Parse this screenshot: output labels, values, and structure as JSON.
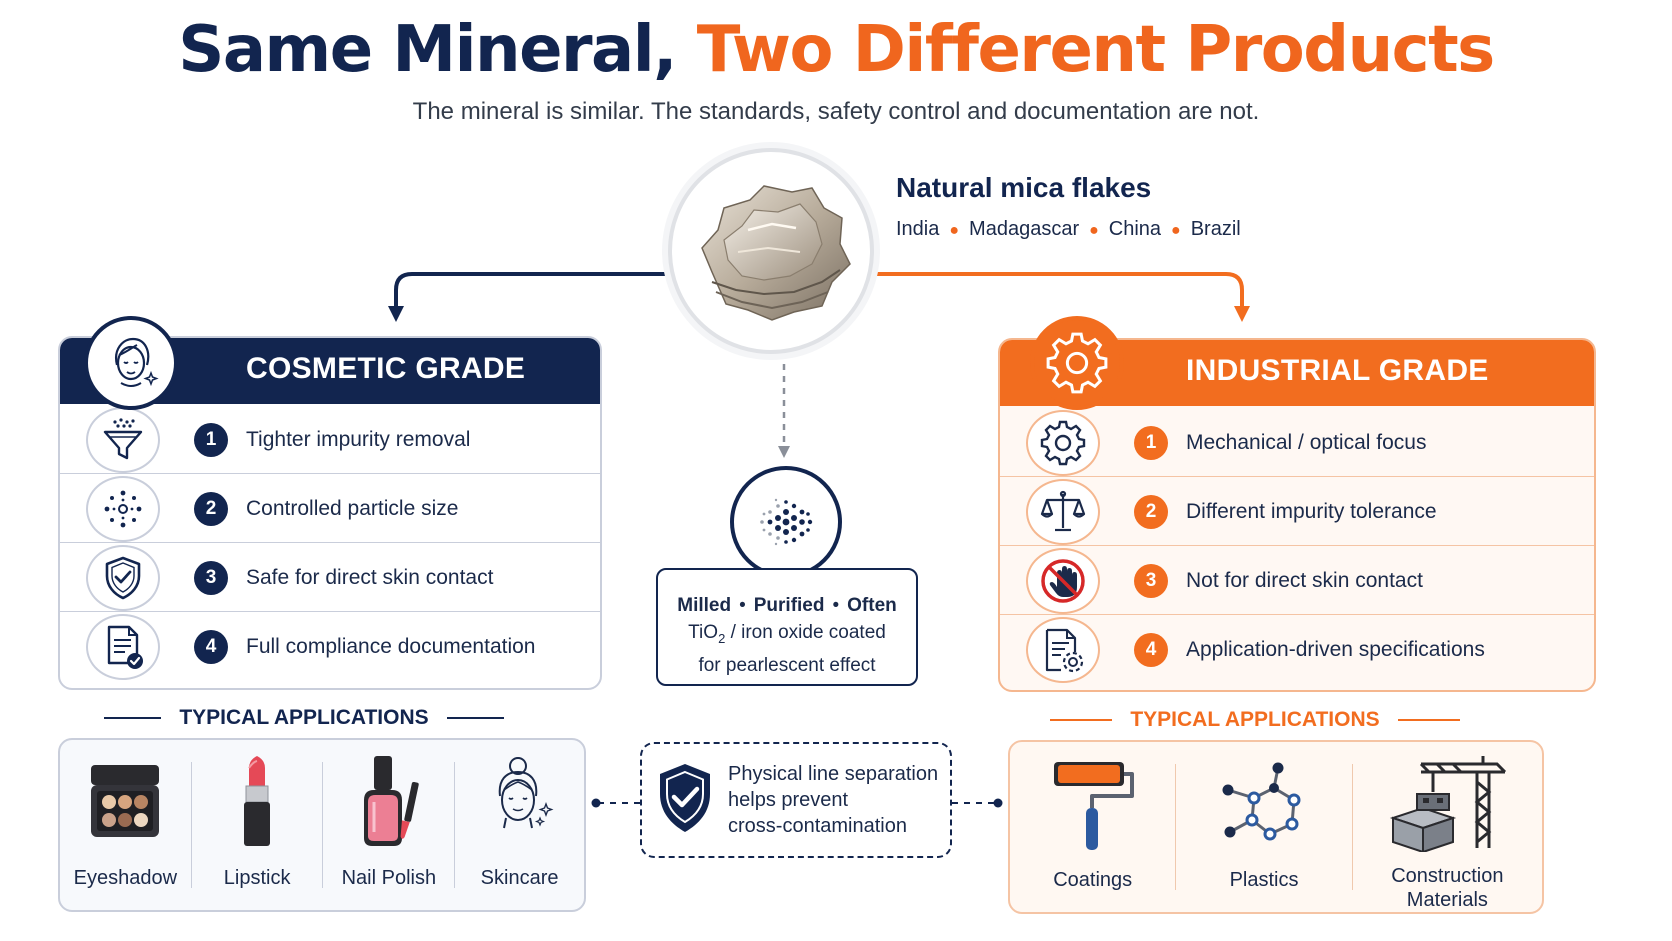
{
  "header": {
    "title_part1": "Same Mineral,",
    "title_part2": "Two Different Products",
    "subtitle": "The mineral is similar. The standards, safety control and documentation are not."
  },
  "source": {
    "title": "Natural mica flakes",
    "origins": [
      "India",
      "Madagascar",
      "China",
      "Brazil"
    ]
  },
  "cosmetic": {
    "title": "COSMETIC GRADE",
    "color": "#12254f",
    "items": [
      {
        "num": "1",
        "text": "Tighter impurity removal",
        "icon": "funnel-filter-icon"
      },
      {
        "num": "2",
        "text": "Controlled particle size",
        "icon": "particle-dots-icon"
      },
      {
        "num": "3",
        "text": "Safe for direct skin contact",
        "icon": "shield-check-icon"
      },
      {
        "num": "4",
        "text": "Full compliance documentation",
        "icon": "document-check-icon"
      }
    ],
    "apps_title": "TYPICAL APPLICATIONS",
    "apps": [
      {
        "label": "Eyeshadow",
        "icon": "eyeshadow-palette-icon"
      },
      {
        "label": "Lipstick",
        "icon": "lipstick-icon"
      },
      {
        "label": "Nail Polish",
        "icon": "nail-polish-icon"
      },
      {
        "label": "Skincare",
        "icon": "skincare-face-icon"
      }
    ]
  },
  "industrial": {
    "title": "INDUSTRIAL GRADE",
    "color": "#f26d1f",
    "items": [
      {
        "num": "1",
        "text": "Mechanical / optical focus",
        "icon": "gear-icon"
      },
      {
        "num": "2",
        "text": "Different impurity tolerance",
        "icon": "balance-scale-icon"
      },
      {
        "num": "3",
        "text": "Not for direct skin contact",
        "icon": "no-touch-hand-icon"
      },
      {
        "num": "4",
        "text": "Application-driven specifications",
        "icon": "document-gear-icon"
      }
    ],
    "apps_title": "TYPICAL APPLICATIONS",
    "apps": [
      {
        "label": "Coatings",
        "icon": "paint-roller-icon"
      },
      {
        "label": "Plastics",
        "icon": "molecule-icon"
      },
      {
        "label": "Construction Materials",
        "label_line1": "Construction",
        "label_line2": "Materials",
        "icon": "construction-crane-icon"
      }
    ]
  },
  "processing": {
    "line1": [
      "Milled",
      "Purified",
      "Often"
    ],
    "line2_pre": "TiO",
    "line2_sub": "2",
    "line2_post": " / iron oxide coated",
    "line3": "for pearlescent effect"
  },
  "separation": {
    "line1": "Physical line separation",
    "line2": "helps prevent",
    "line3": "cross-contamination"
  }
}
